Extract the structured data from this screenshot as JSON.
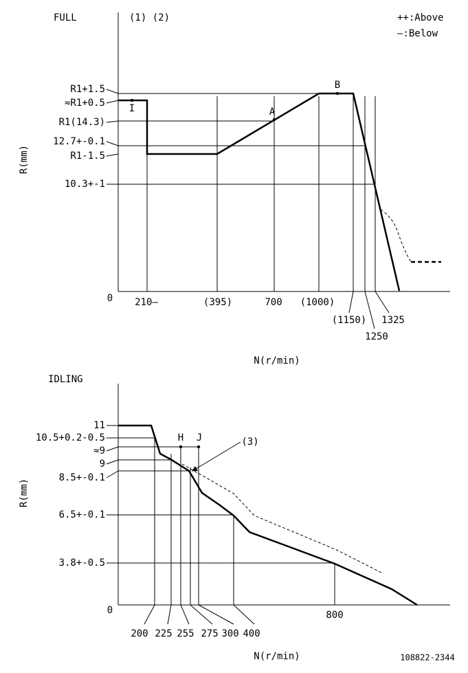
{
  "full": {
    "title": "FULL",
    "notes": "(1) (2)",
    "legend": [
      "++:Above",
      "—:Below"
    ],
    "y_axis_label": "R(mm)",
    "x_axis_label": "N(r/min)",
    "origin": "0",
    "y_labels": [
      "R1+1.5",
      "≈R1+0.5",
      "R1(14.3)",
      "12.7+-0.1",
      "R1-1.5",
      "10.3+-1"
    ],
    "x_labels": [
      "210—",
      "(395)",
      "700",
      "(1000)",
      "(1150)",
      "1250",
      "1325"
    ],
    "points": [
      "I",
      "A",
      "B"
    ]
  },
  "idling": {
    "title": "IDLING",
    "y_axis_label": "R(mm)",
    "x_axis_label": "N(r/min)",
    "origin": "0",
    "y_labels": [
      "11",
      "10.5+0.2-0.5",
      "≈9",
      "9",
      "8.5+-0.1",
      "6.5+-0.1",
      "3.8+-0.5"
    ],
    "x_labels": [
      "200",
      "225",
      "255",
      "275",
      "300",
      "400",
      "800"
    ],
    "points": [
      "H",
      "J"
    ],
    "note": "(3)"
  },
  "footer": {
    "code": "108822-2344"
  }
}
